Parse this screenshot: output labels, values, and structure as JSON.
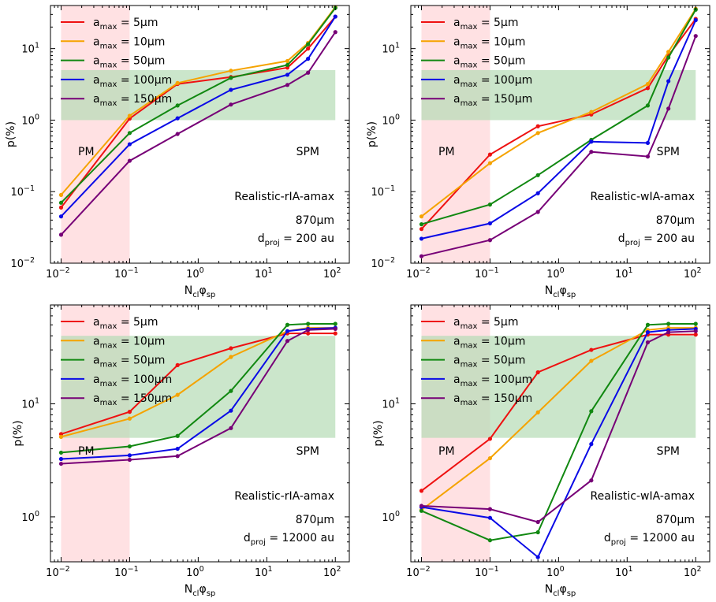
{
  "chart_data": [
    {
      "type": "line",
      "xscale": "log",
      "yscale": "log",
      "xlim": [
        0.007,
        160
      ],
      "ylim": [
        0.01,
        40
      ],
      "xlabel": "Nclφsp",
      "xlabel_main": "N",
      "xlabel_sub1": "cl",
      "xlabel_mid": "φ",
      "xlabel_sub2": "sp",
      "ylabel": "p(%)",
      "yticks": [
        0.01,
        0.1,
        1,
        10
      ],
      "ytick_labels": [
        {
          "base": "10",
          "exp": "−2"
        },
        {
          "base": "10",
          "exp": "−1"
        },
        {
          "base": "10",
          "exp": "0"
        },
        {
          "base": "10",
          "exp": "1"
        }
      ],
      "xticks": [
        0.01,
        0.1,
        1,
        10,
        100
      ],
      "xtick_labels": [
        {
          "base": "10",
          "exp": "−2"
        },
        {
          "base": "10",
          "exp": "−1"
        },
        {
          "base": "10",
          "exp": "0"
        },
        {
          "base": "10",
          "exp": "1"
        },
        {
          "base": "10",
          "exp": "2"
        }
      ],
      "shaded": [
        {
          "name": "pm-region",
          "x": [
            0.01,
            0.1
          ],
          "y": "full",
          "color": "#ffe1e3"
        },
        {
          "name": "observed-range",
          "x": [
            0.01,
            100
          ],
          "y": [
            1,
            5
          ],
          "color": "#b5dcb5"
        }
      ],
      "annotations": {
        "pm": "PM",
        "spm": "SPM",
        "model": "Realistic-rIA-amax",
        "wavelength": "870μm",
        "dproj_main": "d",
        "dproj_sub": "proj",
        "dproj_val": " = 200 au"
      },
      "x": [
        0.01,
        0.1,
        0.5,
        3,
        20,
        40,
        100
      ],
      "series": [
        {
          "name": "a_max = 5μm",
          "label": "5μm",
          "color": "#ee1111",
          "values": [
            0.06,
            1.05,
            3.2,
            4.0,
            5.4,
            10.0,
            28
          ]
        },
        {
          "name": "a_max = 10μm",
          "label": "10μm",
          "color": "#f5a300",
          "values": [
            0.09,
            1.15,
            3.3,
            4.9,
            6.7,
            12.0,
            38
          ]
        },
        {
          "name": "a_max = 50μm",
          "label": "50μm",
          "color": "#118811",
          "values": [
            0.07,
            0.66,
            1.6,
            3.9,
            5.9,
            11.5,
            37
          ]
        },
        {
          "name": "a_max = 100μm",
          "label": "100μm",
          "color": "#0a0ae6",
          "values": [
            0.045,
            0.46,
            1.06,
            2.65,
            4.3,
            7.2,
            28
          ]
        },
        {
          "name": "a_max = 150μm",
          "label": "150μm",
          "color": "#770077",
          "values": [
            0.025,
            0.27,
            0.64,
            1.65,
            3.1,
            4.6,
            17
          ]
        }
      ]
    },
    {
      "type": "line",
      "xscale": "log",
      "yscale": "log",
      "xlim": [
        0.007,
        160
      ],
      "ylim": [
        0.01,
        40
      ],
      "xlabel": "Nclφsp",
      "xlabel_main": "N",
      "xlabel_sub1": "cl",
      "xlabel_mid": "φ",
      "xlabel_sub2": "sp",
      "ylabel": "p(%)",
      "yticks": [
        0.01,
        0.1,
        1,
        10
      ],
      "ytick_labels": [
        {
          "base": "10",
          "exp": "−2"
        },
        {
          "base": "10",
          "exp": "−1"
        },
        {
          "base": "10",
          "exp": "0"
        },
        {
          "base": "10",
          "exp": "1"
        }
      ],
      "xticks": [
        0.01,
        0.1,
        1,
        10,
        100
      ],
      "xtick_labels": [
        {
          "base": "10",
          "exp": "−2"
        },
        {
          "base": "10",
          "exp": "−1"
        },
        {
          "base": "10",
          "exp": "0"
        },
        {
          "base": "10",
          "exp": "1"
        },
        {
          "base": "10",
          "exp": "2"
        }
      ],
      "shaded": [
        {
          "name": "pm-region",
          "x": [
            0.01,
            0.1
          ],
          "y": "full",
          "color": "#ffe1e3"
        },
        {
          "name": "observed-range",
          "x": [
            0.01,
            100
          ],
          "y": [
            1,
            5
          ],
          "color": "#b5dcb5"
        }
      ],
      "annotations": {
        "pm": "PM",
        "spm": "SPM",
        "model": "Realistic-wIA-amax",
        "wavelength": "870μm",
        "dproj_main": "d",
        "dproj_sub": "proj",
        "dproj_val": " = 200 au"
      },
      "x": [
        0.01,
        0.1,
        0.5,
        3,
        20,
        40,
        100
      ],
      "series": [
        {
          "name": "a_max = 5μm",
          "label": "5μm",
          "color": "#ee1111",
          "values": [
            0.03,
            0.33,
            0.82,
            1.2,
            2.8,
            8.0,
            26
          ]
        },
        {
          "name": "a_max = 10μm",
          "label": "10μm",
          "color": "#f5a300",
          "values": [
            0.045,
            0.25,
            0.66,
            1.3,
            3.2,
            9.0,
            36
          ]
        },
        {
          "name": "a_max = 50μm",
          "label": "50μm",
          "color": "#118811",
          "values": [
            0.035,
            0.066,
            0.17,
            0.53,
            1.6,
            7.5,
            35
          ]
        },
        {
          "name": "a_max = 100μm",
          "label": "100μm",
          "color": "#0a0ae6",
          "values": [
            0.022,
            0.036,
            0.095,
            0.5,
            0.48,
            3.5,
            25
          ]
        },
        {
          "name": "a_max = 150μm",
          "label": "150μm",
          "color": "#770077",
          "values": [
            0.0125,
            0.021,
            0.052,
            0.36,
            0.31,
            1.45,
            15
          ]
        }
      ]
    },
    {
      "type": "line",
      "xscale": "log",
      "yscale": "log",
      "xlim": [
        0.007,
        160
      ],
      "ylim": [
        0.4,
        75
      ],
      "xlabel": "Nclφsp",
      "xlabel_main": "N",
      "xlabel_sub1": "cl",
      "xlabel_mid": "φ",
      "xlabel_sub2": "sp",
      "ylabel": "p(%)",
      "yticks": [
        1,
        10
      ],
      "ytick_labels": [
        {
          "base": "10",
          "exp": "0"
        },
        {
          "base": "10",
          "exp": "1"
        }
      ],
      "xticks": [
        0.01,
        0.1,
        1,
        10,
        100
      ],
      "xtick_labels": [
        {
          "base": "10",
          "exp": "−2"
        },
        {
          "base": "10",
          "exp": "−1"
        },
        {
          "base": "10",
          "exp": "0"
        },
        {
          "base": "10",
          "exp": "1"
        },
        {
          "base": "10",
          "exp": "2"
        }
      ],
      "shaded": [
        {
          "name": "pm-region",
          "x": [
            0.01,
            0.1
          ],
          "y": "full",
          "color": "#ffe1e3"
        },
        {
          "name": "observed-range",
          "x": [
            0.01,
            100
          ],
          "y": [
            5,
            40
          ],
          "color": "#b5dcb5"
        }
      ],
      "annotations": {
        "pm": "PM",
        "spm": "SPM",
        "model": "Realistic-rIA-amax",
        "wavelength": "870μm",
        "dproj_main": "d",
        "dproj_sub": "proj",
        "dproj_val": " = 12000 au"
      },
      "x": [
        0.01,
        0.1,
        0.5,
        3,
        20,
        40,
        100
      ],
      "series": [
        {
          "name": "a_max = 5μm",
          "label": "5μm",
          "color": "#ee1111",
          "values": [
            5.4,
            8.5,
            22,
            31,
            42,
            42,
            42
          ]
        },
        {
          "name": "a_max = 10μm",
          "label": "10μm",
          "color": "#f5a300",
          "values": [
            5.1,
            7.4,
            12,
            26,
            44,
            47,
            47
          ]
        },
        {
          "name": "a_max = 50μm",
          "label": "50μm",
          "color": "#118811",
          "values": [
            3.7,
            4.2,
            5.2,
            13,
            50,
            51,
            51
          ]
        },
        {
          "name": "a_max = 100μm",
          "label": "100μm",
          "color": "#0a0ae6",
          "values": [
            3.25,
            3.5,
            4.0,
            8.7,
            44,
            46,
            47
          ]
        },
        {
          "name": "a_max = 150μm",
          "label": "150μm",
          "color": "#770077",
          "values": [
            2.95,
            3.2,
            3.45,
            6.1,
            36,
            45,
            46
          ]
        }
      ]
    },
    {
      "type": "line",
      "xscale": "log",
      "yscale": "log",
      "xlim": [
        0.007,
        160
      ],
      "ylim": [
        0.4,
        75
      ],
      "xlabel": "Nclφsp",
      "xlabel_main": "N",
      "xlabel_sub1": "cl",
      "xlabel_mid": "φ",
      "xlabel_sub2": "sp",
      "ylabel": "p(%)",
      "yticks": [
        1,
        10
      ],
      "ytick_labels": [
        {
          "base": "10",
          "exp": "0"
        },
        {
          "base": "10",
          "exp": "1"
        }
      ],
      "xticks": [
        0.01,
        0.1,
        1,
        10,
        100
      ],
      "xtick_labels": [
        {
          "base": "10",
          "exp": "−2"
        },
        {
          "base": "10",
          "exp": "−1"
        },
        {
          "base": "10",
          "exp": "0"
        },
        {
          "base": "10",
          "exp": "1"
        },
        {
          "base": "10",
          "exp": "2"
        }
      ],
      "shaded": [
        {
          "name": "pm-region",
          "x": [
            0.01,
            0.1
          ],
          "y": "full",
          "color": "#ffe1e3"
        },
        {
          "name": "observed-range",
          "x": [
            0.01,
            100
          ],
          "y": [
            5,
            40
          ],
          "color": "#b5dcb5"
        }
      ],
      "annotations": {
        "pm": "PM",
        "spm": "SPM",
        "model": "Realistic-wIA-amax",
        "wavelength": "870μm",
        "dproj_main": "d",
        "dproj_sub": "proj",
        "dproj_val": " = 12000 au"
      },
      "x": [
        0.01,
        0.1,
        0.5,
        3,
        20,
        40,
        100
      ],
      "series": [
        {
          "name": "a_max = 5μm",
          "label": "5μm",
          "color": "#ee1111",
          "values": [
            1.7,
            4.9,
            19,
            30,
            41,
            41,
            41
          ]
        },
        {
          "name": "a_max = 10μm",
          "label": "10μm",
          "color": "#f5a300",
          "values": [
            1.15,
            3.3,
            8.4,
            24,
            45,
            47,
            47
          ]
        },
        {
          "name": "a_max = 50μm",
          "label": "50μm",
          "color": "#118811",
          "values": [
            1.13,
            0.62,
            0.73,
            8.6,
            50,
            51,
            51
          ]
        },
        {
          "name": "a_max = 100μm",
          "label": "100μm",
          "color": "#0a0ae6",
          "values": [
            1.22,
            0.98,
            0.44,
            4.4,
            43,
            45,
            46
          ]
        },
        {
          "name": "a_max = 150μm",
          "label": "150μm",
          "color": "#770077",
          "values": [
            1.25,
            1.17,
            0.9,
            2.1,
            35,
            43,
            44
          ]
        }
      ]
    }
  ],
  "legend_prefix_main": "a",
  "legend_prefix_sub": "max",
  "legend_eq": " = "
}
